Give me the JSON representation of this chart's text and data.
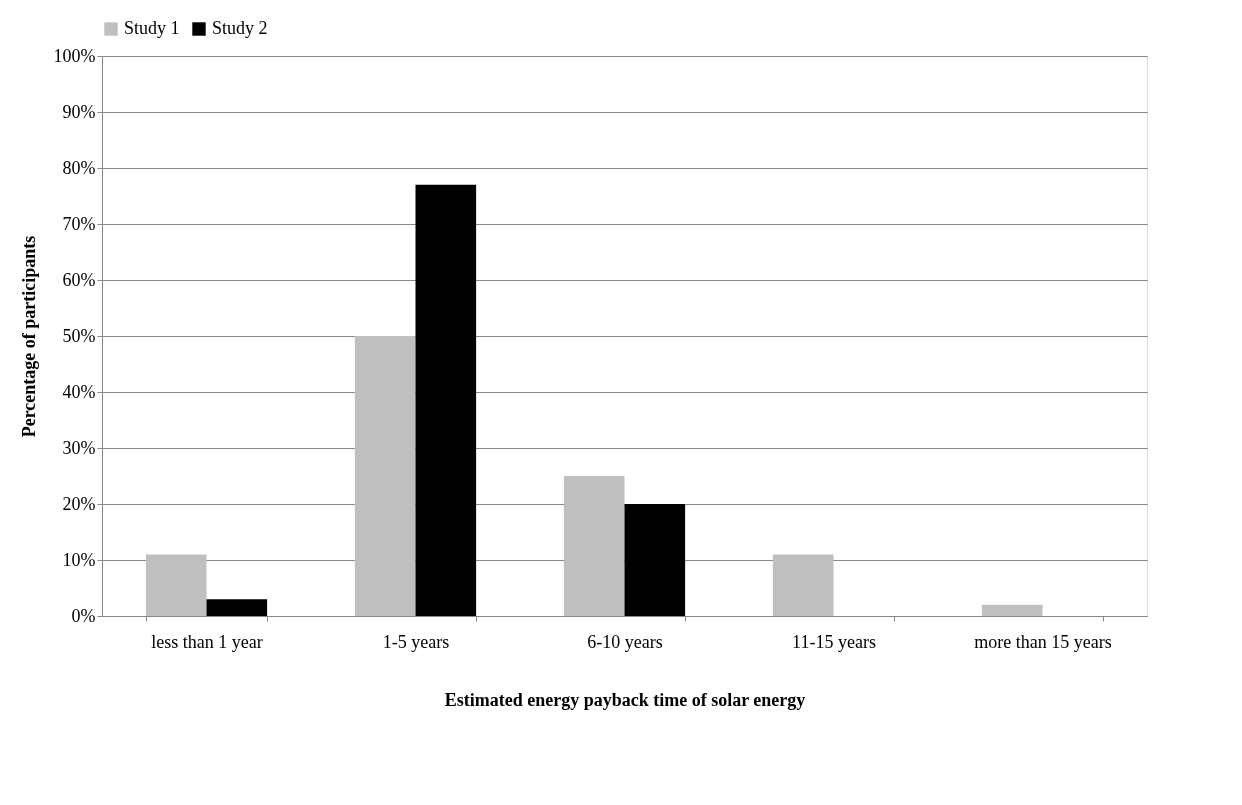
{
  "chart_data": {
    "type": "bar",
    "xlabel": "Estimated energy payback time of solar energy",
    "ylabel": "Percentage of participants",
    "categories": [
      "less than 1 year",
      "1-5 years",
      "6-10 years",
      "11-15 years",
      "more than 15 years"
    ],
    "series": [
      {
        "name": "Study 1",
        "color": "#bfbfbf",
        "values": [
          11,
          50,
          25,
          11,
          2
        ]
      },
      {
        "name": "Study 2",
        "color": "#000000",
        "values": [
          3,
          77,
          20,
          0,
          0
        ]
      }
    ],
    "ylim": [
      0,
      100
    ],
    "yticks": [
      {
        "value": 0,
        "label": "0%"
      },
      {
        "value": 10,
        "label": "10%"
      },
      {
        "value": 20,
        "label": "20%"
      },
      {
        "value": 30,
        "label": "30%"
      },
      {
        "value": 40,
        "label": "40%"
      },
      {
        "value": 50,
        "label": "50%"
      },
      {
        "value": 60,
        "label": "60%"
      },
      {
        "value": 70,
        "label": "70%"
      },
      {
        "value": 80,
        "label": "80%"
      },
      {
        "value": 90,
        "label": "90%"
      },
      {
        "value": 100,
        "label": "100%"
      }
    ],
    "grid": "y",
    "legend": "top"
  }
}
